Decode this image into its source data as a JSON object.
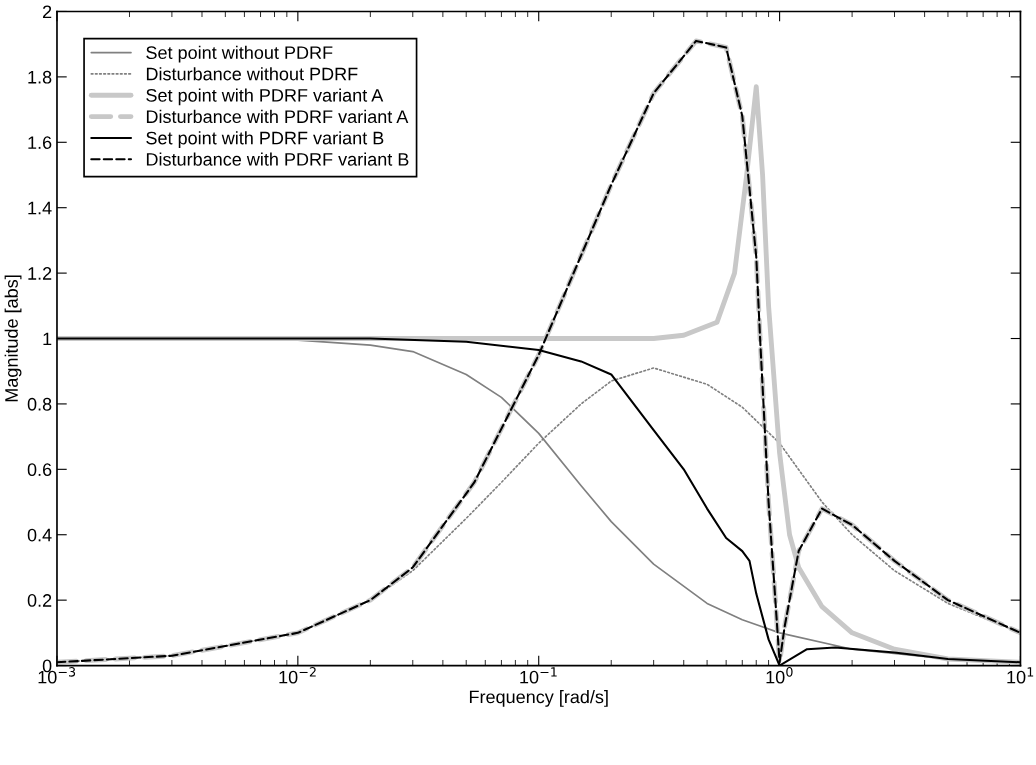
{
  "chart_data": {
    "type": "line",
    "xlabel": "Frequency [rad/s]",
    "ylabel": "Magnitude [abs]",
    "log": "x",
    "xlim": [
      0.001,
      10
    ],
    "ylim": [
      0,
      2
    ],
    "xticks": [
      {
        "value": 0.001,
        "label": "10$^{−3}$"
      },
      {
        "value": 0.01,
        "label": "10$^{−2}$"
      },
      {
        "value": 0.1,
        "label": "10$^{−1}$"
      },
      {
        "value": 1,
        "label": "10$^{0}$"
      },
      {
        "value": 10,
        "label": "10$^{1}$"
      }
    ],
    "yticks": [
      0,
      0.2,
      0.4,
      0.6,
      0.8,
      1,
      1.2,
      1.4,
      1.6,
      1.8,
      2
    ],
    "grid": false,
    "legend": "top left",
    "marker": "none",
    "series": [
      {
        "name": "Set point without PDRF",
        "color": "#808080",
        "line_style": "solid",
        "x": [
          0.001,
          0.01,
          0.02,
          0.03,
          0.05,
          0.07,
          0.1,
          0.15,
          0.2,
          0.3,
          0.5,
          0.7,
          1,
          2,
          5,
          10
        ],
        "values": [
          1.0,
          0.995,
          0.98,
          0.96,
          0.89,
          0.82,
          0.71,
          0.55,
          0.44,
          0.31,
          0.19,
          0.14,
          0.1,
          0.05,
          0.02,
          0.01
        ]
      },
      {
        "name": "Disturbance without PDRF",
        "color": "#808080",
        "line_style": "dotted",
        "x": [
          0.001,
          0.003,
          0.01,
          0.02,
          0.03,
          0.05,
          0.07,
          0.1,
          0.15,
          0.2,
          0.3,
          0.5,
          0.7,
          1,
          1.5,
          2,
          3,
          5,
          10
        ],
        "values": [
          0.01,
          0.03,
          0.1,
          0.2,
          0.29,
          0.45,
          0.56,
          0.68,
          0.8,
          0.87,
          0.91,
          0.86,
          0.79,
          0.68,
          0.5,
          0.4,
          0.29,
          0.19,
          0.1
        ]
      },
      {
        "name": "Set point with PDRF variant A",
        "color": "#c8c8c8",
        "line_style": "solid",
        "x": [
          0.001,
          0.1,
          0.3,
          0.4,
          0.55,
          0.65,
          0.73,
          0.8,
          0.85,
          0.9,
          1,
          1.1,
          1.2,
          1.5,
          2,
          3,
          5,
          10
        ],
        "values": [
          1.0,
          1.0,
          1.0,
          1.01,
          1.05,
          1.2,
          1.5,
          1.77,
          1.5,
          1.1,
          0.65,
          0.4,
          0.3,
          0.18,
          0.1,
          0.05,
          0.02,
          0.01
        ]
      },
      {
        "name": "Disturbance with PDRF variant A",
        "color": "#c8c8c8",
        "line_style": "dashed",
        "x": [
          0.001,
          0.003,
          0.01,
          0.02,
          0.03,
          0.054,
          0.1,
          0.2,
          0.3,
          0.45,
          0.6,
          0.7,
          0.8,
          0.83,
          0.9,
          0.95,
          1,
          1.05,
          1.2,
          1.5,
          2,
          3,
          5,
          10
        ],
        "values": [
          0.01,
          0.03,
          0.1,
          0.2,
          0.3,
          0.56,
          0.95,
          1.47,
          1.75,
          1.91,
          1.89,
          1.68,
          1.25,
          1.0,
          0.5,
          0.25,
          0.01,
          0.12,
          0.35,
          0.48,
          0.43,
          0.32,
          0.2,
          0.1
        ]
      },
      {
        "name": "Set point with PDRF variant B",
        "color": "#000000",
        "line_style": "solid",
        "x": [
          0.001,
          0.02,
          0.05,
          0.1,
          0.15,
          0.2,
          0.3,
          0.4,
          0.5,
          0.6,
          0.7,
          0.75,
          0.8,
          0.9,
          1,
          1.3,
          1.7,
          3,
          5,
          10
        ],
        "values": [
          1.0,
          1.0,
          0.99,
          0.965,
          0.93,
          0.89,
          0.72,
          0.6,
          0.48,
          0.39,
          0.35,
          0.32,
          0.22,
          0.08,
          0.0,
          0.05,
          0.055,
          0.04,
          0.02,
          0.01
        ]
      },
      {
        "name": "Disturbance with PDRF variant B",
        "color": "#000000",
        "line_style": "dashed",
        "x": [
          0.001,
          0.003,
          0.01,
          0.02,
          0.03,
          0.054,
          0.1,
          0.2,
          0.3,
          0.45,
          0.6,
          0.7,
          0.8,
          0.83,
          0.9,
          0.95,
          1,
          1.05,
          1.2,
          1.5,
          2,
          3,
          5,
          10
        ],
        "values": [
          0.01,
          0.03,
          0.1,
          0.2,
          0.3,
          0.56,
          0.95,
          1.47,
          1.75,
          1.91,
          1.89,
          1.68,
          1.25,
          1.0,
          0.5,
          0.25,
          0.01,
          0.12,
          0.35,
          0.48,
          0.43,
          0.32,
          0.2,
          0.1
        ]
      }
    ]
  }
}
